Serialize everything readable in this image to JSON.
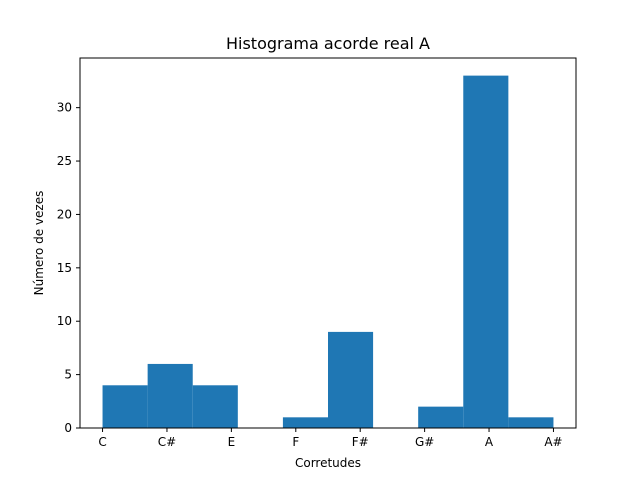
{
  "chart_data": {
    "type": "bar",
    "title": "Histograma acorde real A",
    "xlabel": "Corretudes",
    "ylabel": "Número de vezes",
    "x_tick_labels": [
      "C",
      "C#",
      "E",
      "F",
      "F#",
      "G#",
      "A",
      "A#"
    ],
    "y_ticks": [
      0,
      5,
      10,
      15,
      20,
      25,
      30
    ],
    "ylim": [
      0,
      34.65
    ],
    "bars": [
      {
        "x_start": 0.0,
        "x_end": 0.7,
        "value": 4
      },
      {
        "x_start": 0.7,
        "x_end": 1.4,
        "value": 6
      },
      {
        "x_start": 1.4,
        "x_end": 2.1,
        "value": 4
      },
      {
        "x_start": 2.8,
        "x_end": 3.5,
        "value": 1
      },
      {
        "x_start": 3.5,
        "x_end": 4.2,
        "value": 9
      },
      {
        "x_start": 4.9,
        "x_end": 5.6,
        "value": 2
      },
      {
        "x_start": 5.6,
        "x_end": 6.3,
        "value": 33
      },
      {
        "x_start": 6.3,
        "x_end": 7.0,
        "value": 1
      }
    ],
    "xlim": [
      -0.35,
      7.35
    ],
    "bar_color": "#1f77b4",
    "grid": false,
    "legend": "none"
  }
}
